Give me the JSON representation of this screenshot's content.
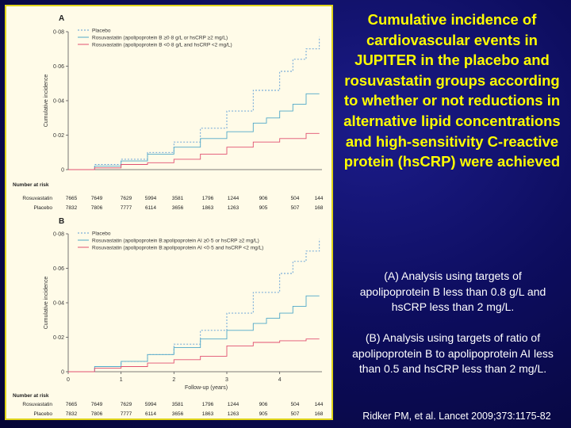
{
  "slide": {
    "title": "Cumulative incidence of cardiovascular events in JUPITER in the placebo and rosuvastatin groups according to whether or not reductions in alternative lipid concentrations and high-sensitivity C-reactive protein (hsCRP) were achieved",
    "note_a": "(A) Analysis using targets of apolipoprotein B less than 0.8 g/L and hsCRP less than 2 mg/L.",
    "note_b": "(B) Analysis using targets of ratio of apolipoprotein B to apolipoprotein AI less than 0.5 and hsCRP less than 2 mg/L.",
    "citation": "Ridker PM, et al. Lancet 2009;373:1175-82"
  },
  "colors": {
    "placebo": "#5b9bd5",
    "rosuva_high": "#4fa8c8",
    "rosuva_low": "#e05070",
    "title": "#ffff00",
    "panel_bg": "#fffbe8",
    "panel_border": "#e0d41a"
  },
  "chart_data": [
    {
      "type": "line",
      "panel_label": "A",
      "ylabel": "Cumulative incidence",
      "xlabel": "",
      "xlim": [
        0,
        4.8
      ],
      "ylim": [
        0,
        0.08
      ],
      "x_ticks": [],
      "y_ticks": [
        "0",
        "0·02",
        "0·04",
        "0·06",
        "0·08"
      ],
      "series": [
        {
          "name": "Placebo",
          "style": "dotted",
          "color_key": "placebo",
          "x": [
            0,
            0.5,
            1,
            1.5,
            2,
            2.5,
            3,
            3.5,
            4,
            4.25,
            4.5,
            4.75
          ],
          "y": [
            0,
            0.003,
            0.006,
            0.01,
            0.016,
            0.024,
            0.034,
            0.046,
            0.057,
            0.064,
            0.07,
            0.077
          ]
        },
        {
          "name": "Rosuvastatin (apolipoprotein B ≥0·8 g/L or hsCRP ≥2 mg/L)",
          "style": "solid",
          "color_key": "rosuva_high",
          "x": [
            0,
            0.5,
            1,
            1.5,
            2,
            2.5,
            3,
            3.5,
            3.75,
            4,
            4.25,
            4.5,
            4.75
          ],
          "y": [
            0,
            0.002,
            0.005,
            0.009,
            0.013,
            0.018,
            0.022,
            0.027,
            0.03,
            0.034,
            0.038,
            0.044,
            0.044
          ]
        },
        {
          "name": "Rosuvastatin (apolipoprotein B <0·8 g/L and hsCRP <2 mg/L)",
          "style": "solid",
          "color_key": "rosuva_low",
          "x": [
            0,
            0.5,
            1,
            1.5,
            2,
            2.5,
            3,
            3.5,
            4,
            4.5,
            4.75
          ],
          "y": [
            0,
            0.001,
            0.003,
            0.004,
            0.006,
            0.009,
            0.013,
            0.016,
            0.018,
            0.021,
            0.021
          ]
        }
      ],
      "risk_table": {
        "heading": "Number at risk",
        "rows": [
          {
            "label": "Rosuvastatin",
            "values": [
              "7665",
              "7649",
              "7629",
              "5994",
              "3581",
              "1796",
              "1244",
              "906",
              "504",
              "144"
            ]
          },
          {
            "label": "Placebo",
            "values": [
              "7832",
              "7806",
              "7777",
              "6114",
              "3656",
              "1863",
              "1263",
              "905",
              "507",
              "168"
            ]
          }
        ]
      }
    },
    {
      "type": "line",
      "panel_label": "B",
      "ylabel": "Cumulative incidence",
      "xlabel": "Follow-up (years)",
      "xlim": [
        0,
        4.8
      ],
      "ylim": [
        0,
        0.08
      ],
      "x_ticks": [
        "0",
        "1",
        "2",
        "3",
        "4"
      ],
      "y_ticks": [
        "0",
        "0·02",
        "0·04",
        "0·06",
        "0·08"
      ],
      "series": [
        {
          "name": "Placebo",
          "style": "dotted",
          "color_key": "placebo",
          "x": [
            0,
            0.5,
            1,
            1.5,
            2,
            2.5,
            3,
            3.5,
            4,
            4.25,
            4.5,
            4.75
          ],
          "y": [
            0,
            0.003,
            0.006,
            0.01,
            0.016,
            0.024,
            0.034,
            0.046,
            0.057,
            0.064,
            0.07,
            0.077
          ]
        },
        {
          "name": "Rosuvastatin (apolipoprotein B:apolipoprotein AI ≥0·5 or hsCRP ≥2 mg/L)",
          "style": "solid",
          "color_key": "rosuva_high",
          "x": [
            0,
            0.5,
            1,
            1.5,
            2,
            2.5,
            3,
            3.5,
            3.75,
            4,
            4.25,
            4.5,
            4.75
          ],
          "y": [
            0,
            0.003,
            0.006,
            0.01,
            0.014,
            0.019,
            0.024,
            0.028,
            0.031,
            0.034,
            0.038,
            0.044,
            0.044
          ]
        },
        {
          "name": "Rosuvastatin (apolipoprotein B:apolipoprotein AI <0·5 and hsCRP <2 mg/L)",
          "style": "solid",
          "color_key": "rosuva_low",
          "x": [
            0,
            0.5,
            1,
            1.5,
            2,
            2.5,
            3,
            3.5,
            4,
            4.5,
            4.75
          ],
          "y": [
            0,
            0.002,
            0.003,
            0.005,
            0.007,
            0.009,
            0.015,
            0.017,
            0.018,
            0.019,
            0.019
          ]
        }
      ],
      "risk_table": {
        "heading": "Number at risk",
        "rows": [
          {
            "label": "Rosuvastatin",
            "values": [
              "7665",
              "7649",
              "7629",
              "5994",
              "3581",
              "1796",
              "1244",
              "906",
              "504",
              "144"
            ]
          },
          {
            "label": "Placebo",
            "values": [
              "7832",
              "7806",
              "7777",
              "6114",
              "3656",
              "1863",
              "1263",
              "905",
              "507",
              "168"
            ]
          }
        ]
      }
    }
  ]
}
